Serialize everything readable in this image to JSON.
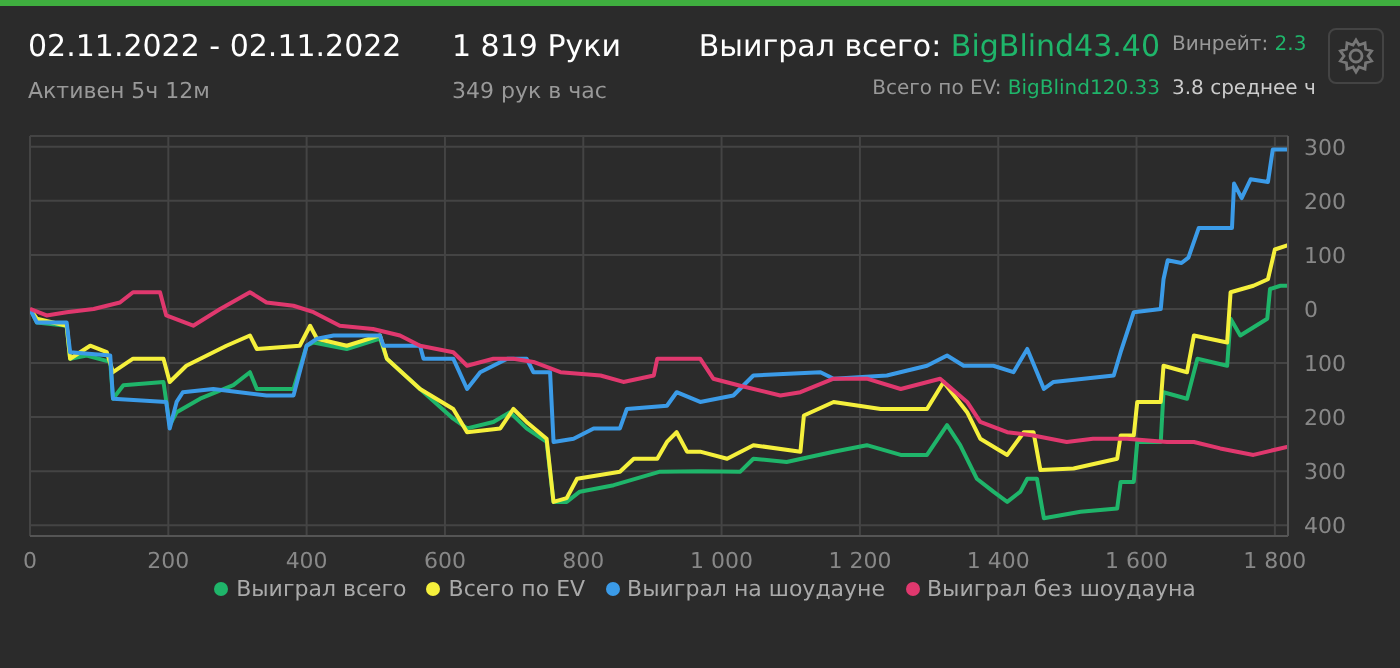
{
  "chart_data": {
    "type": "line",
    "title": "02.11.2022 - 02.11.2022",
    "subtitle": "Активен 5ч 12м",
    "annotations": [
      "1 819 Руки",
      "349 рук в час",
      "Выиграл всего:",
      "BigBlind43.40",
      "Всего по EV:",
      "BigBlind120.33",
      "Винрейт:",
      "2.3",
      "3.8 среднее ч"
    ],
    "xlim": [
      0,
      1819
    ],
    "xticks": [
      0,
      200,
      400,
      600,
      800,
      {
        "value": 1000,
        "label": "1 000"
      },
      {
        "value": 1200,
        "label": "1 200"
      },
      {
        "value": 1400,
        "label": "1 400"
      },
      {
        "value": 1600,
        "label": "1 600"
      },
      {
        "value": 1800,
        "label": "1 800"
      }
    ],
    "ylim": [
      -420,
      320
    ],
    "yticks": [
      {
        "value": -400,
        "label": "400"
      },
      {
        "value": -300,
        "label": "300"
      },
      {
        "value": -200,
        "label": "200"
      },
      {
        "value": -100,
        "label": "100"
      },
      0,
      100,
      200,
      300
    ],
    "grid": true,
    "legend": "bottom",
    "marker": "none",
    "series": [
      {
        "name": "Выиграл всего",
        "color": "#1fb56a",
        "x": [
          0,
          10,
          53,
          58,
          82,
          116,
          120,
          135,
          193,
          202,
          212,
          246,
          294,
          318,
          328,
          381,
          400,
          410,
          458,
          506,
          516,
          564,
          612,
          632,
          670,
          694,
          718,
          747,
          757,
          776,
          795,
          844,
          911,
          969,
          1027,
          1046,
          1094,
          1162,
          1210,
          1259,
          1297,
          1326,
          1345,
          1369,
          1393,
          1413,
          1432,
          1442,
          1456,
          1466,
          1519,
          1572,
          1577,
          1596,
          1601,
          1635,
          1639,
          1673,
          1688,
          1731,
          1736,
          1750,
          1789,
          1793,
          1808,
          1819
        ],
        "values": [
          0,
          -25,
          -31,
          -92,
          -86,
          -98,
          -166,
          -141,
          -135,
          -215,
          -191,
          -166,
          -141,
          -117,
          -148,
          -148,
          -68,
          -62,
          -74,
          -55,
          -92,
          -148,
          -203,
          -221,
          -209,
          -191,
          -221,
          -246,
          -357,
          -357,
          -338,
          -326,
          -301,
          -300,
          -301,
          -277,
          -283,
          -264,
          -252,
          -270,
          -270,
          -215,
          -252,
          -314,
          -338,
          -357,
          -338,
          -314,
          -314,
          -387,
          -375,
          -369,
          -320,
          -320,
          -246,
          -246,
          -154,
          -166,
          -92,
          -105,
          -18,
          -49,
          -18,
          37,
          43,
          43
        ]
      },
      {
        "name": "Всего по EV",
        "color": "#f5f03c",
        "x": [
          0,
          10,
          53,
          58,
          87,
          111,
          120,
          149,
          193,
          202,
          226,
          284,
          318,
          328,
          390,
          405,
          415,
          458,
          506,
          516,
          564,
          612,
          632,
          680,
          699,
          718,
          747,
          757,
          776,
          791,
          853,
          873,
          907,
          921,
          935,
          950,
          969,
          1008,
          1046,
          1114,
          1119,
          1162,
          1230,
          1297,
          1321,
          1355,
          1374,
          1413,
          1437,
          1451,
          1461,
          1509,
          1572,
          1577,
          1596,
          1601,
          1635,
          1639,
          1673,
          1683,
          1731,
          1736,
          1769,
          1790,
          1800,
          1819
        ],
        "values": [
          0,
          -18,
          -31,
          -92,
          -68,
          -80,
          -117,
          -92,
          -92,
          -135,
          -105,
          -68,
          -49,
          -74,
          -68,
          -31,
          -55,
          -68,
          -49,
          -92,
          -148,
          -185,
          -228,
          -221,
          -185,
          -209,
          -240,
          -357,
          -350,
          -314,
          -301,
          -277,
          -277,
          -246,
          -228,
          -264,
          -264,
          -277,
          -252,
          -264,
          -197,
          -172,
          -185,
          -185,
          -135,
          -191,
          -240,
          -270,
          -228,
          -228,
          -298,
          -295,
          -277,
          -234,
          -234,
          -172,
          -172,
          -105,
          -117,
          -49,
          -62,
          31,
          43,
          55,
          110,
          118
        ]
      },
      {
        "name": "Выиграл на шоудауне",
        "color": "#3b9be8",
        "x": [
          0,
          10,
          53,
          58,
          116,
          120,
          197,
          202,
          212,
          221,
          265,
          342,
          381,
          400,
          415,
          439,
          506,
          511,
          564,
          569,
          612,
          632,
          651,
          690,
          718,
          728,
          752,
          757,
          786,
          815,
          853,
          863,
          921,
          935,
          969,
          1017,
          1046,
          1143,
          1162,
          1239,
          1297,
          1326,
          1350,
          1393,
          1422,
          1442,
          1456,
          1466,
          1480,
          1567,
          1577,
          1596,
          1635,
          1639,
          1645,
          1665,
          1675,
          1690,
          1738,
          1741,
          1752,
          1765,
          1790,
          1797,
          1819
        ],
        "values": [
          0,
          -25,
          -25,
          -80,
          -86,
          -166,
          -172,
          -221,
          -172,
          -154,
          -148,
          -160,
          -160,
          -68,
          -55,
          -49,
          -49,
          -68,
          -68,
          -92,
          -92,
          -148,
          -117,
          -92,
          -92,
          -117,
          -117,
          -246,
          -240,
          -221,
          -221,
          -185,
          -179,
          -154,
          -172,
          -160,
          -123,
          -117,
          -129,
          -123,
          -105,
          -86,
          -105,
          -105,
          -117,
          -74,
          -117,
          -148,
          -135,
          -123,
          -80,
          -6,
          0,
          55,
          90,
          85,
          95,
          150,
          150,
          232,
          205,
          240,
          235,
          295,
          295
        ]
      },
      {
        "name": "Выиграл без шоудауна",
        "color": "#e0386e",
        "x": [
          0,
          24,
          53,
          92,
          130,
          149,
          188,
          197,
          236,
          275,
          318,
          342,
          381,
          410,
          448,
          496,
          535,
          564,
          612,
          632,
          670,
          699,
          728,
          767,
          825,
          858,
          902,
          907,
          969,
          988,
          1027,
          1085,
          1114,
          1162,
          1210,
          1259,
          1316,
          1355,
          1374,
          1413,
          1451,
          1499,
          1537,
          1586,
          1644,
          1683,
          1721,
          1769,
          1808,
          1819
        ],
        "values": [
          0,
          -12,
          -6,
          0,
          12,
          31,
          31,
          -12,
          -31,
          0,
          31,
          12,
          6,
          -6,
          -31,
          -37,
          -49,
          -68,
          -80,
          -105,
          -92,
          -92,
          -98,
          -117,
          -123,
          -135,
          -123,
          -92,
          -92,
          -129,
          -142,
          -160,
          -154,
          -129,
          -129,
          -148,
          -129,
          -172,
          -209,
          -228,
          -234,
          -246,
          -240,
          -240,
          -246,
          -246,
          -258,
          -270,
          -258,
          -255
        ]
      }
    ]
  }
}
